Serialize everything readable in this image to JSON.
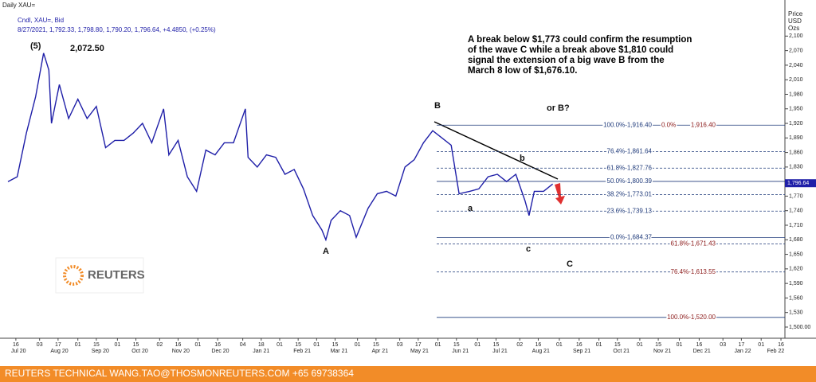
{
  "chart_data": {
    "type": "line",
    "title": "Daily XAU=",
    "subtitle": "8/27/2021, 1,792.33, 1,798.80, 1,790.20, 1,796.64, +4.4850, (+0.25%)",
    "y_axis_label": [
      "Price",
      "USD",
      "Ozs"
    ],
    "series": [
      {
        "name": "Cndl, XAU=, Bid",
        "color": "#1f1fa8",
        "values": [
          1800,
          1810,
          1900,
          1975,
          2065,
          2030,
          1920,
          2000,
          1930,
          1970,
          1930,
          1955,
          1870,
          1885,
          1885,
          1900,
          1920,
          1880,
          1950,
          1855,
          1885,
          1810,
          1780,
          1865,
          1855,
          1880,
          1880,
          1950,
          1850,
          1830,
          1855,
          1850,
          1815,
          1825,
          1785,
          1730,
          1700,
          1680,
          1720,
          1740,
          1730,
          1685,
          1745,
          1775,
          1780,
          1770,
          1830,
          1845,
          1880,
          1905,
          1890,
          1875,
          1775,
          1780,
          1785,
          1810,
          1815,
          1800,
          1815,
          1760,
          1730,
          1780,
          1780,
          1795
        ]
      }
    ],
    "x": [
      "2020-07-10",
      "2020-07-17",
      "2020-07-24",
      "2020-07-31",
      "2020-08-06",
      "2020-08-10",
      "2020-08-12",
      "2020-08-18",
      "2020-08-25",
      "2020-09-01",
      "2020-09-08",
      "2020-09-15",
      "2020-09-22",
      "2020-09-29",
      "2020-10-06",
      "2020-10-13",
      "2020-10-20",
      "2020-10-27",
      "2020-11-05",
      "2020-11-09",
      "2020-11-16",
      "2020-11-23",
      "2020-11-30",
      "2020-12-07",
      "2020-12-14",
      "2020-12-21",
      "2020-12-28",
      "2021-01-06",
      "2021-01-08",
      "2021-01-15",
      "2021-01-22",
      "2021-01-29",
      "2021-02-05",
      "2021-02-12",
      "2021-02-19",
      "2021-02-26",
      "2021-03-05",
      "2021-03-08",
      "2021-03-12",
      "2021-03-19",
      "2021-03-26",
      "2021-03-31",
      "2021-04-09",
      "2021-04-16",
      "2021-04-23",
      "2021-04-30",
      "2021-05-07",
      "2021-05-14",
      "2021-05-21",
      "2021-05-28",
      "2021-06-04",
      "2021-06-11",
      "2021-06-17",
      "2021-06-25",
      "2021-07-02",
      "2021-07-09",
      "2021-07-16",
      "2021-07-23",
      "2021-07-30",
      "2021-08-06",
      "2021-08-09",
      "2021-08-13",
      "2021-08-20",
      "2021-08-27"
    ],
    "xlim": [
      "2020-07-07",
      "2022-02-19"
    ],
    "xticks": [
      {
        "value": "2020-07-16",
        "label": "16"
      },
      {
        "value": "2020-08-03",
        "label": "03"
      },
      {
        "value": "2020-08-17",
        "label": "17"
      },
      {
        "value": "2020-09-01",
        "label": "01"
      },
      {
        "value": "2020-09-15",
        "label": "15"
      },
      {
        "value": "2020-10-01",
        "label": "01"
      },
      {
        "value": "2020-10-15",
        "label": "15"
      },
      {
        "value": "2020-11-02",
        "label": "02"
      },
      {
        "value": "2020-11-16",
        "label": "16"
      },
      {
        "value": "2020-12-01",
        "label": "01"
      },
      {
        "value": "2020-12-16",
        "label": "16"
      },
      {
        "value": "2021-01-04",
        "label": "04"
      },
      {
        "value": "2021-01-18",
        "label": "18"
      },
      {
        "value": "2021-02-01",
        "label": "01"
      },
      {
        "value": "2021-02-15",
        "label": "15"
      },
      {
        "value": "2021-03-01",
        "label": "01"
      },
      {
        "value": "2021-03-15",
        "label": "15"
      },
      {
        "value": "2021-04-01",
        "label": "01"
      },
      {
        "value": "2021-04-15",
        "label": "15"
      },
      {
        "value": "2021-05-03",
        "label": "03"
      },
      {
        "value": "2021-05-17",
        "label": "17"
      },
      {
        "value": "2021-06-01",
        "label": "01"
      },
      {
        "value": "2021-06-15",
        "label": "15"
      },
      {
        "value": "2021-07-01",
        "label": "01"
      },
      {
        "value": "2021-07-15",
        "label": "15"
      },
      {
        "value": "2021-08-02",
        "label": "02"
      },
      {
        "value": "2021-08-16",
        "label": "16"
      },
      {
        "value": "2021-09-01",
        "label": "01"
      },
      {
        "value": "2021-09-16",
        "label": "16"
      },
      {
        "value": "2021-10-01",
        "label": "01"
      },
      {
        "value": "2021-10-15",
        "label": "15"
      },
      {
        "value": "2021-11-01",
        "label": "01"
      },
      {
        "value": "2021-11-15",
        "label": "15"
      },
      {
        "value": "2021-12-01",
        "label": "01"
      },
      {
        "value": "2021-12-16",
        "label": "16"
      },
      {
        "value": "2022-01-03",
        "label": "03"
      },
      {
        "value": "2022-01-17",
        "label": "17"
      },
      {
        "value": "2022-02-01",
        "label": "01"
      },
      {
        "value": "2022-02-16",
        "label": "16"
      }
    ],
    "x_month_labels": [
      {
        "value": "2020-07-18",
        "label": "Jul 20"
      },
      {
        "value": "2020-08-18",
        "label": "Aug 20"
      },
      {
        "value": "2020-09-18",
        "label": "Sep 20"
      },
      {
        "value": "2020-10-18",
        "label": "Oct 20"
      },
      {
        "value": "2020-11-18",
        "label": "Nov 20"
      },
      {
        "value": "2020-12-18",
        "label": "Dec 20"
      },
      {
        "value": "2021-01-18",
        "label": "Jan 21"
      },
      {
        "value": "2021-02-18",
        "label": "Feb 21"
      },
      {
        "value": "2021-03-18",
        "label": "Mar 21"
      },
      {
        "value": "2021-04-18",
        "label": "Apr 21"
      },
      {
        "value": "2021-05-18",
        "label": "May 21"
      },
      {
        "value": "2021-06-18",
        "label": "Jun 21"
      },
      {
        "value": "2021-07-18",
        "label": "Jul 21"
      },
      {
        "value": "2021-08-18",
        "label": "Aug 21"
      },
      {
        "value": "2021-09-18",
        "label": "Sep 21"
      },
      {
        "value": "2021-10-18",
        "label": "Oct 21"
      },
      {
        "value": "2021-11-18",
        "label": "Nov 21"
      },
      {
        "value": "2021-12-18",
        "label": "Dec 21"
      },
      {
        "value": "2022-01-18",
        "label": "Jan 22"
      },
      {
        "value": "2022-02-12",
        "label": "Feb 22"
      }
    ],
    "ylim": [
      1477,
      2158
    ],
    "yticks": [
      {
        "value": 1500,
        "label": "1,500.00"
      },
      {
        "value": 1530,
        "label": "1,530"
      },
      {
        "value": 1560,
        "label": "1,560"
      },
      {
        "value": 1590,
        "label": "1,590"
      },
      {
        "value": 1620,
        "label": "1,620"
      },
      {
        "value": 1650,
        "label": "1,650"
      },
      {
        "value": 1680,
        "label": "1,680"
      },
      {
        "value": 1710,
        "label": "1,710"
      },
      {
        "value": 1740,
        "label": "1,740"
      },
      {
        "value": 1770,
        "label": "1,770"
      },
      {
        "value": 1830,
        "label": "1,830"
      },
      {
        "value": 1860,
        "label": "1,860"
      },
      {
        "value": 1890,
        "label": "1,890"
      },
      {
        "value": 1920,
        "label": "1,920"
      },
      {
        "value": 1950,
        "label": "1,950"
      },
      {
        "value": 1980,
        "label": "1,980"
      },
      {
        "value": 2010,
        "label": "2,010"
      },
      {
        "value": 2040,
        "label": "2,040"
      },
      {
        "value": 2070,
        "label": "2,070"
      },
      {
        "value": 2100,
        "label": "2,100"
      }
    ],
    "last_price": {
      "value": 1796.64,
      "label": "1,796.64"
    },
    "fib_levels": [
      {
        "value": 1916.4,
        "label": "100.0%-1,916.40",
        "color": "#1f3a7a",
        "dashed": false
      },
      {
        "value": 1861.64,
        "label": "76.4%-1,861.64",
        "color": "#1f3a7a",
        "dashed": true
      },
      {
        "value": 1827.76,
        "label": "61.8%-1,827.76",
        "color": "#1f3a7a",
        "dashed": true
      },
      {
        "value": 1800.39,
        "label": "50.0%-1,800.39",
        "color": "#1f3a7a",
        "dashed": false
      },
      {
        "value": 1773.01,
        "label": "38.2%-1,773.01",
        "color": "#1f3a7a",
        "dashed": true
      },
      {
        "value": 1739.13,
        "label": "23.6%-1,739.13",
        "color": "#1f3a7a",
        "dashed": true
      },
      {
        "value": 1684.37,
        "label": "0.0%-1,684.37",
        "color": "#1f3a7a",
        "dashed": false
      },
      {
        "value": 1671.43,
        "label": "61.8%-1,671.43",
        "color": "#8b1a1a",
        "dashed": true
      },
      {
        "value": 1613.55,
        "label": "76.4%-1,613.55",
        "color": "#8b1a1a",
        "dashed": true
      },
      {
        "value": 1520,
        "label": "100.0%-1,520.00",
        "color": "#8b1a1a",
        "dashed": false
      }
    ],
    "extension_start": {
      "value": 1916.4,
      "pct": "0.0%",
      "price": "1,916.40",
      "color": "#8b1a1a"
    },
    "wave_labels": [
      "(5)",
      "2,072.50",
      "B",
      "or B?",
      "b",
      "a",
      "A",
      "c",
      "C"
    ],
    "commentary": [
      "A break below $1,773 could confirm the resumption",
      "of the wave C while a break above $1,810 could",
      "signal the extension of a big wave B from the",
      "March 8 low of $1,676.10."
    ],
    "logo": "REUTERS",
    "footer": "REUTERS TECHNICAL  WANG.TAO@THOSMONREUTERS.COM  +65 69738364"
  }
}
